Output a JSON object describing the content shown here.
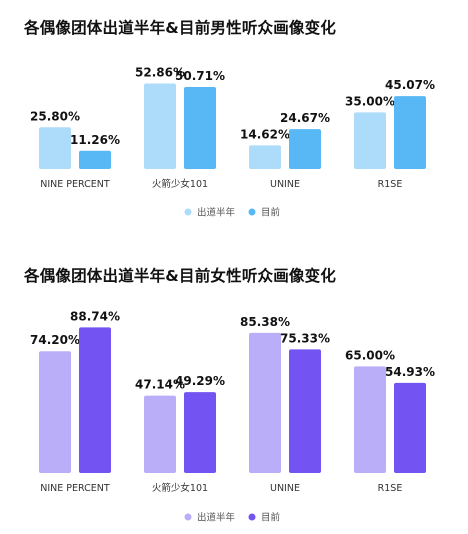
{
  "chart_data": [
    {
      "type": "bar",
      "title": "各偶像团体出道半年&目前男性听众画像变化",
      "categories": [
        "NINE PERCENT",
        "火箭少女101",
        "UNINE",
        "R1SE"
      ],
      "series": [
        {
          "name": "出道半年",
          "values": [
            25.8,
            52.86,
            14.62,
            35.0
          ],
          "labels": [
            "25.80%",
            "52.86%",
            "14.62%",
            "35.00%"
          ],
          "color": "#ADDCFA"
        },
        {
          "name": "目前",
          "values": [
            11.26,
            50.71,
            24.67,
            45.07
          ],
          "labels": [
            "11.26%",
            "50.71%",
            "24.67%",
            "45.07%"
          ],
          "color": "#58B8F5"
        }
      ],
      "ylim": [
        0,
        55
      ],
      "grid": false,
      "legend": "bottom-center"
    },
    {
      "type": "bar",
      "title": "各偶像团体出道半年&目前女性听众画像变化",
      "categories": [
        "NINE PERCENT",
        "火箭少女101",
        "UNINE",
        "R1SE"
      ],
      "series": [
        {
          "name": "出道半年",
          "values": [
            74.2,
            47.14,
            85.38,
            65.0
          ],
          "labels": [
            "74.20%",
            "47.14%",
            "85.38%",
            "65.00%"
          ],
          "color": "#BBAEF9"
        },
        {
          "name": "目前",
          "values": [
            88.74,
            49.29,
            75.33,
            54.93
          ],
          "labels": [
            "88.74%",
            "49.29%",
            "75.33%",
            "54.93%"
          ],
          "color": "#7453F3"
        }
      ],
      "ylim": [
        0,
        92
      ],
      "grid": false,
      "legend": "bottom-center"
    }
  ]
}
